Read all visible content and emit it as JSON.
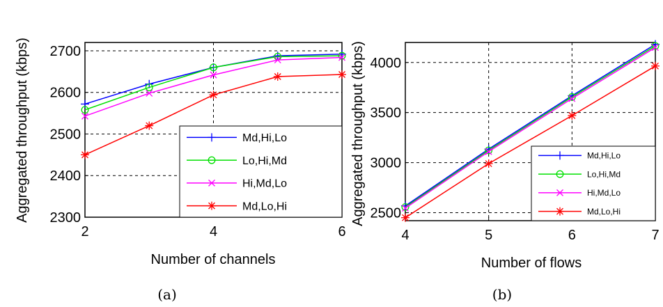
{
  "colors": {
    "blue": "#0000ff",
    "green": "#00e000",
    "magenta": "#ff00ff",
    "red": "#ff0000"
  },
  "chart_data": [
    {
      "type": "line",
      "xlabel": "Number of channels",
      "ylabel": "Aggregated throughput (kbps)",
      "caption": "(a)",
      "x": [
        2,
        3,
        4,
        5,
        6
      ],
      "xlim": [
        2,
        6
      ],
      "ylim": [
        2300,
        2720
      ],
      "xticks": [
        "2",
        "4",
        "6"
      ],
      "xtick_values": [
        2,
        4,
        6
      ],
      "yticks": [
        "2300",
        "2400",
        "2500",
        "2600",
        "2700"
      ],
      "ytick_values": [
        2300,
        2400,
        2500,
        2600,
        2700
      ],
      "grid": true,
      "legend_position": "lower-right",
      "series": [
        {
          "name": "Md,Hi,Lo",
          "color": "#0000ff",
          "marker": "plus",
          "values": [
            2572,
            2620,
            2660,
            2688,
            2692
          ]
        },
        {
          "name": "Lo,Hi,Md",
          "color": "#00e000",
          "marker": "circle",
          "values": [
            2558,
            2612,
            2660,
            2686,
            2688
          ]
        },
        {
          "name": "Hi,Md,Lo",
          "color": "#ff00ff",
          "marker": "x",
          "values": [
            2543,
            2598,
            2642,
            2678,
            2684
          ]
        },
        {
          "name": "Md,Lo,Hi",
          "color": "#ff0000",
          "marker": "star",
          "values": [
            2450,
            2520,
            2594,
            2638,
            2643
          ]
        }
      ]
    },
    {
      "type": "line",
      "xlabel": "Number of flows",
      "ylabel": "Aggregated throughput (kbps)",
      "caption": "(b)",
      "x": [
        4,
        5,
        6,
        7
      ],
      "xlim": [
        4,
        7
      ],
      "ylim": [
        2420,
        4200
      ],
      "xticks": [
        "4",
        "5",
        "6",
        "7"
      ],
      "xtick_values": [
        4,
        5,
        6,
        7
      ],
      "yticks": [
        "2500",
        "3000",
        "3500",
        "4000"
      ],
      "ytick_values": [
        2500,
        3000,
        3500,
        4000
      ],
      "grid": true,
      "legend_position": "lower-right",
      "series": [
        {
          "name": "Md,Hi,Lo",
          "color": "#0000ff",
          "marker": "plus",
          "values": [
            2568,
            3135,
            3668,
            4182
          ]
        },
        {
          "name": "Lo,Hi,Md",
          "color": "#00e000",
          "marker": "circle",
          "values": [
            2556,
            3122,
            3655,
            4165
          ]
        },
        {
          "name": "Hi,Md,Lo",
          "color": "#ff00ff",
          "marker": "x",
          "values": [
            2545,
            3110,
            3640,
            4150
          ]
        },
        {
          "name": "Md,Lo,Hi",
          "color": "#ff0000",
          "marker": "star",
          "values": [
            2450,
            2990,
            3470,
            3965
          ]
        }
      ]
    }
  ]
}
